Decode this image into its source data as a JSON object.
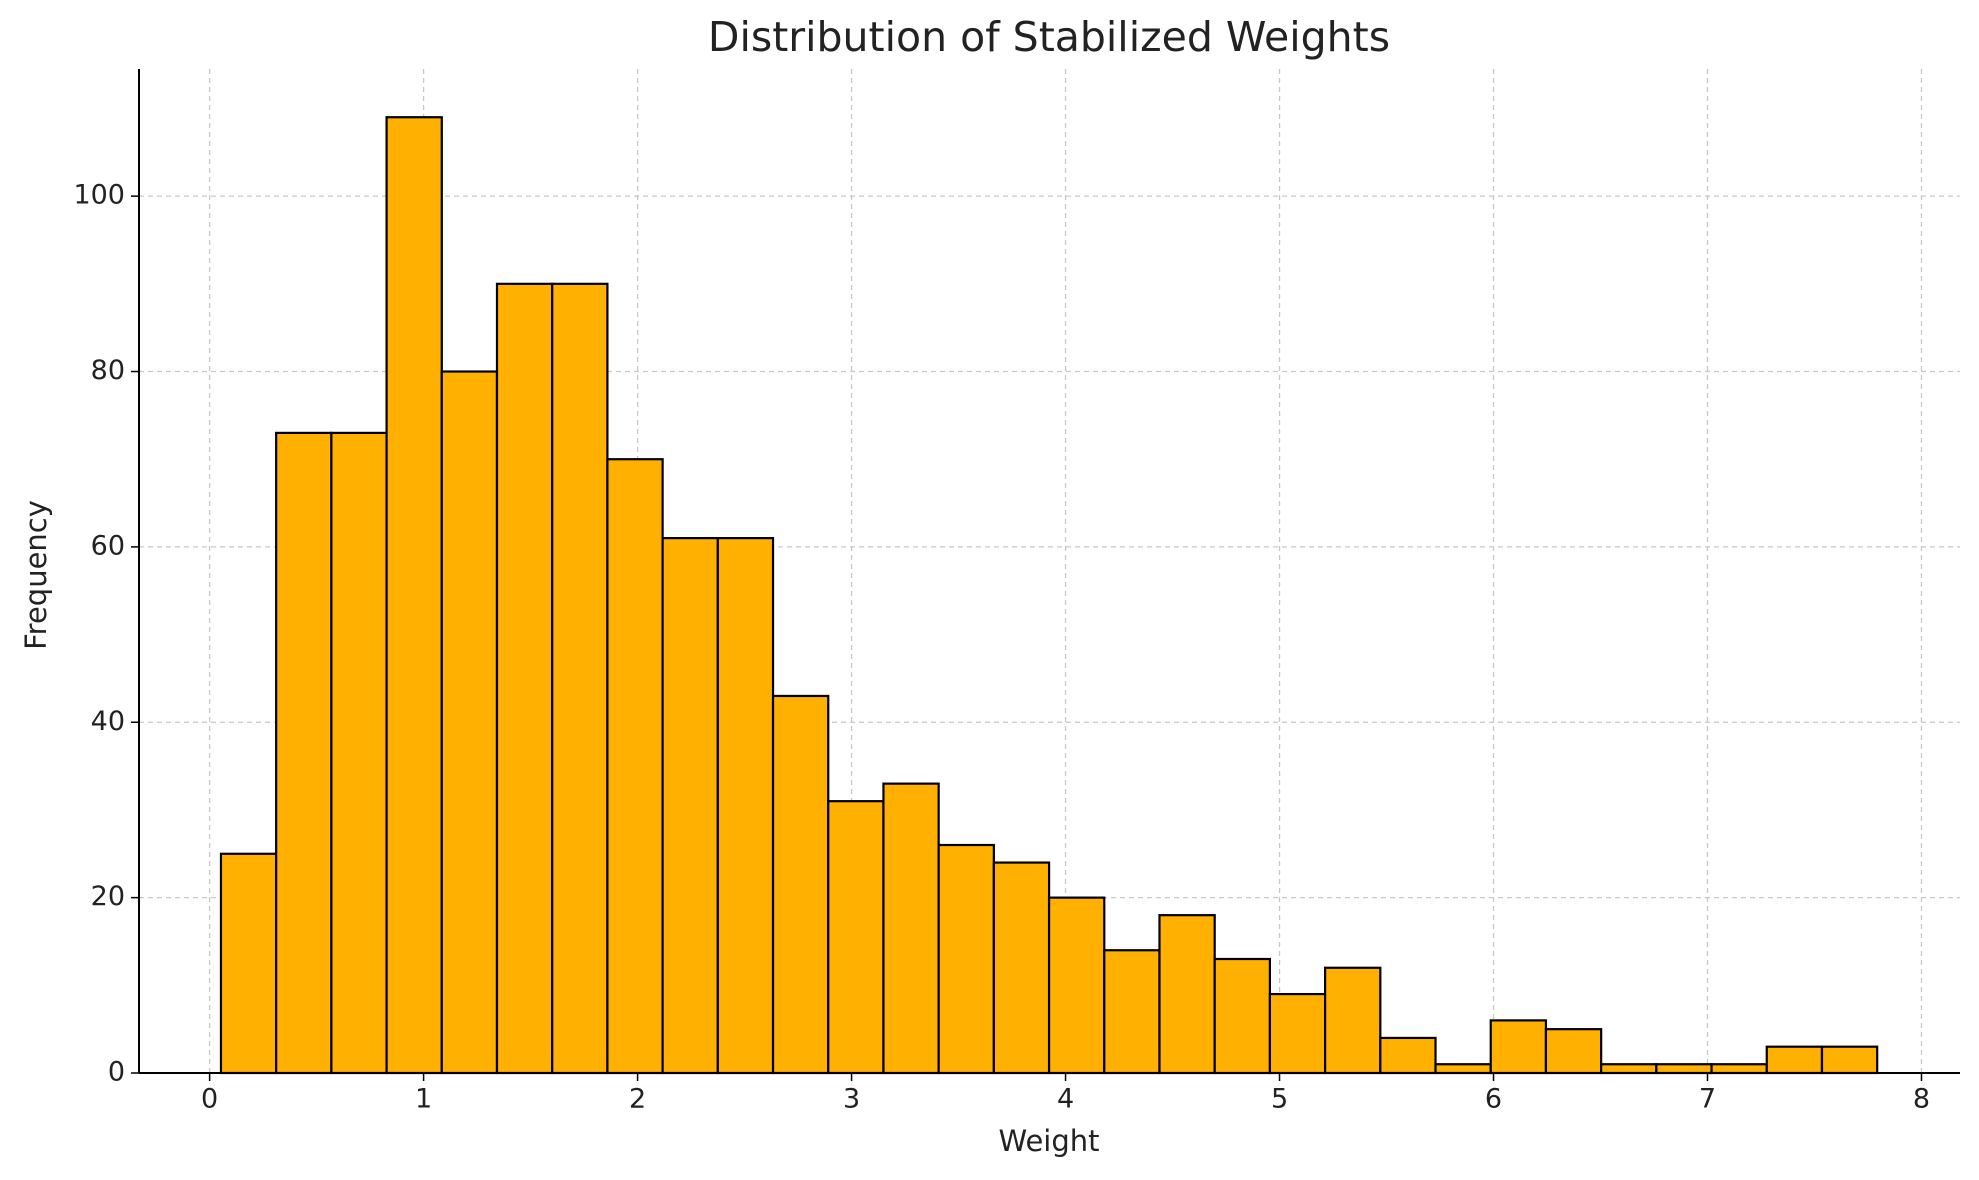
{
  "chart_data": {
    "type": "histogram",
    "title": "Distribution of Stabilized Weights",
    "x_label": "Weight",
    "y_label": "Frequency",
    "bins": [
      0.053,
      0.311,
      0.569,
      0.827,
      1.085,
      1.343,
      1.601,
      1.859,
      2.117,
      2.375,
      2.633,
      2.891,
      3.149,
      3.407,
      3.665,
      3.923,
      4.181,
      4.439,
      4.697,
      4.955,
      5.213,
      5.471,
      5.729,
      5.987,
      6.245,
      6.503,
      6.761,
      7.019,
      7.277,
      7.535,
      7.793
    ],
    "counts": [
      25,
      73,
      73,
      109,
      80,
      90,
      90,
      70,
      61,
      61,
      43,
      31,
      33,
      26,
      24,
      20,
      14,
      18,
      13,
      9,
      12,
      4,
      1,
      6,
      5,
      1,
      1,
      1,
      3,
      3
    ],
    "color": "#ffb000",
    "edge_color": "#000000",
    "xlim": [
      -0.33,
      8.18
    ],
    "ylim": [
      0,
      114.5
    ],
    "xticks": [
      0,
      1,
      2,
      3,
      4,
      5,
      6,
      7,
      8
    ],
    "yticks": [
      0,
      20,
      40,
      60,
      80,
      100
    ],
    "grid": true
  }
}
